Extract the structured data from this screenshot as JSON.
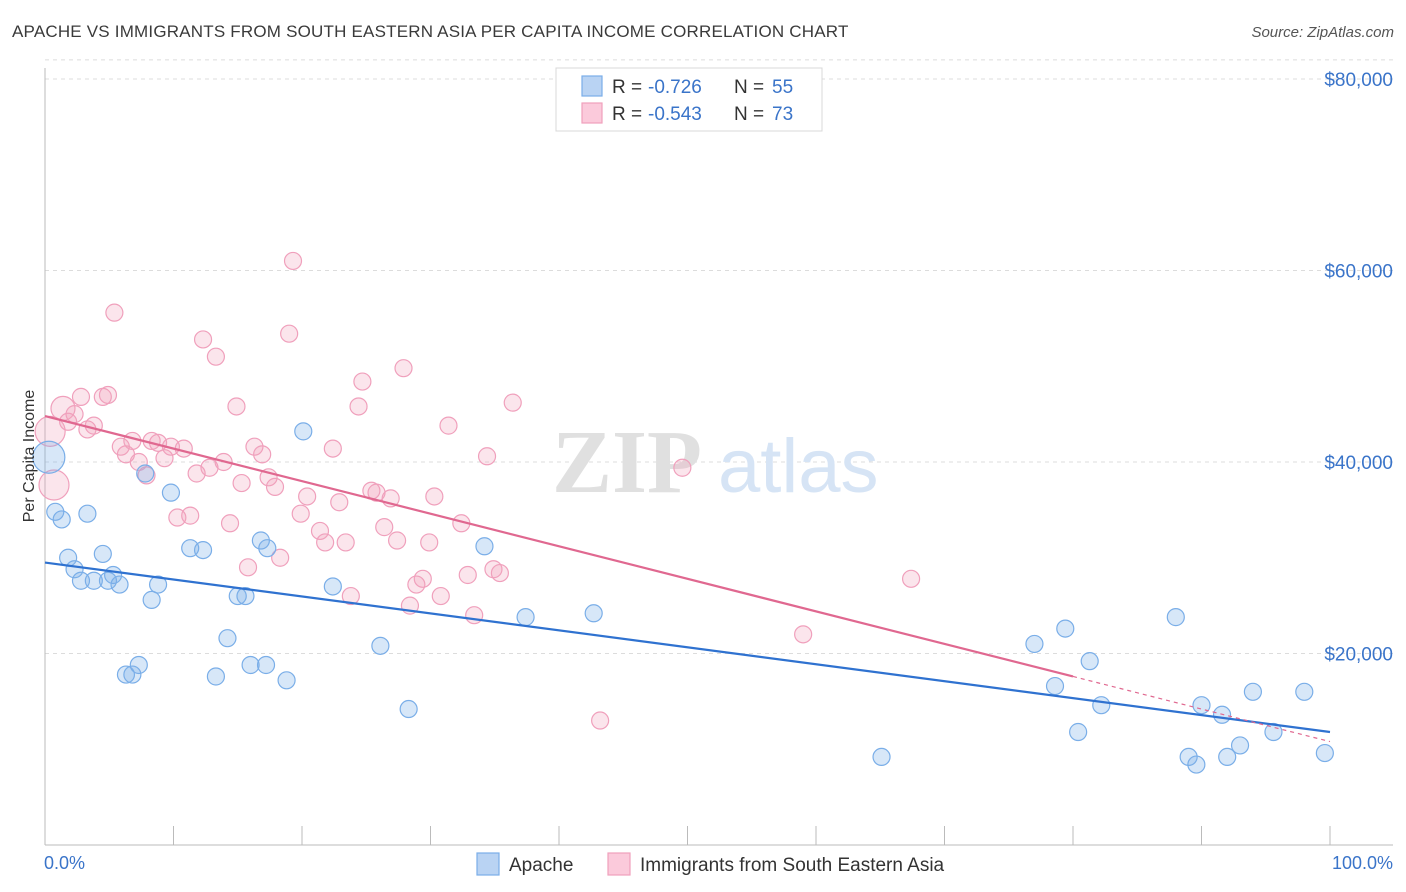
{
  "title": "APACHE VS IMMIGRANTS FROM SOUTH EASTERN ASIA PER CAPITA INCOME CORRELATION CHART",
  "source": "Source: ZipAtlas.com",
  "watermark": {
    "zip": "ZIP",
    "atlas": "atlas"
  },
  "colors": {
    "apache": "#7aaee8",
    "apache_line": "#2f72d0",
    "sea": "#f0a0bc",
    "sea_line": "#e06890",
    "accent_text": "#3a74c9"
  },
  "legend": {
    "rows": [
      {
        "r_label": "R =",
        "r_value": "-0.726",
        "n_label": "N =",
        "n_value": "55"
      },
      {
        "r_label": "R =",
        "r_value": "-0.543",
        "n_label": "N =",
        "n_value": "73"
      }
    ]
  },
  "chart_data": {
    "type": "scatter",
    "title": "APACHE VS IMMIGRANTS FROM SOUTH EASTERN ASIA PER CAPITA INCOME CORRELATION CHART",
    "ylabel": "Per Capita Income",
    "xlabel": "",
    "xlim": [
      0,
      100
    ],
    "ylim": [
      0,
      82000
    ],
    "x_tick_labels": [
      "0.0%",
      "100.0%"
    ],
    "y_ticks": [
      20000,
      40000,
      60000,
      80000
    ],
    "y_tick_labels": [
      "$20,000",
      "$40,000",
      "$60,000",
      "$80,000"
    ],
    "grid": true,
    "series": [
      {
        "name": "Apache",
        "r": -0.726,
        "n": 55,
        "trend": {
          "x": [
            0,
            100
          ],
          "y": [
            29500,
            11800
          ]
        },
        "points": [
          [
            0.3,
            40500
          ],
          [
            0.8,
            34800
          ],
          [
            1.3,
            34000
          ],
          [
            1.8,
            30000
          ],
          [
            2.3,
            28800
          ],
          [
            2.8,
            27600
          ],
          [
            3.3,
            34600
          ],
          [
            3.8,
            27600
          ],
          [
            4.5,
            30400
          ],
          [
            4.9,
            27600
          ],
          [
            5.3,
            28200
          ],
          [
            5.8,
            27200
          ],
          [
            6.3,
            17800
          ],
          [
            6.8,
            17800
          ],
          [
            7.3,
            18800
          ],
          [
            7.8,
            38800
          ],
          [
            8.3,
            25600
          ],
          [
            8.8,
            27200
          ],
          [
            9.8,
            36800
          ],
          [
            11.3,
            31000
          ],
          [
            12.3,
            30800
          ],
          [
            13.3,
            17600
          ],
          [
            14.2,
            21600
          ],
          [
            15.0,
            26000
          ],
          [
            15.6,
            26000
          ],
          [
            16.0,
            18800
          ],
          [
            16.8,
            31800
          ],
          [
            17.3,
            31000
          ],
          [
            17.2,
            18800
          ],
          [
            18.8,
            17200
          ],
          [
            20.1,
            43200
          ],
          [
            22.4,
            27000
          ],
          [
            26.1,
            20800
          ],
          [
            28.3,
            14200
          ],
          [
            34.2,
            31200
          ],
          [
            37.4,
            23800
          ],
          [
            42.7,
            24200
          ],
          [
            65.1,
            9200
          ],
          [
            77.0,
            21000
          ],
          [
            78.6,
            16600
          ],
          [
            79.4,
            22600
          ],
          [
            80.4,
            11800
          ],
          [
            81.3,
            19200
          ],
          [
            82.2,
            14600
          ],
          [
            88.0,
            23800
          ],
          [
            89.0,
            9200
          ],
          [
            89.6,
            8400
          ],
          [
            90.0,
            14600
          ],
          [
            91.6,
            13600
          ],
          [
            92.0,
            9200
          ],
          [
            93.0,
            10400
          ],
          [
            94.0,
            16000
          ],
          [
            95.6,
            11800
          ],
          [
            98.0,
            16000
          ],
          [
            99.6,
            9600
          ]
        ]
      },
      {
        "name": "Immigrants from South Eastern Asia",
        "r": -0.543,
        "n": 73,
        "trend": {
          "x": [
            0,
            80
          ],
          "y": [
            44800,
            17600
          ]
        },
        "trend_ext": {
          "x": [
            80,
            100
          ],
          "y": [
            17600,
            10800
          ]
        },
        "points": [
          [
            0.4,
            43200
          ],
          [
            0.7,
            37600
          ],
          [
            1.4,
            45600
          ],
          [
            1.8,
            44200
          ],
          [
            2.3,
            45000
          ],
          [
            2.8,
            46800
          ],
          [
            3.3,
            43400
          ],
          [
            3.8,
            43800
          ],
          [
            4.5,
            46800
          ],
          [
            4.9,
            47000
          ],
          [
            5.4,
            55600
          ],
          [
            5.9,
            41600
          ],
          [
            6.3,
            40800
          ],
          [
            6.8,
            42200
          ],
          [
            7.3,
            40000
          ],
          [
            7.9,
            38600
          ],
          [
            8.3,
            42200
          ],
          [
            8.8,
            42000
          ],
          [
            9.3,
            40400
          ],
          [
            9.8,
            41600
          ],
          [
            10.3,
            34200
          ],
          [
            10.8,
            41400
          ],
          [
            11.3,
            34400
          ],
          [
            11.8,
            38800
          ],
          [
            12.3,
            52800
          ],
          [
            12.8,
            39400
          ],
          [
            13.3,
            51000
          ],
          [
            13.9,
            40000
          ],
          [
            14.4,
            33600
          ],
          [
            14.9,
            45800
          ],
          [
            15.3,
            37800
          ],
          [
            15.8,
            29000
          ],
          [
            16.3,
            41600
          ],
          [
            16.9,
            40800
          ],
          [
            17.4,
            38400
          ],
          [
            17.9,
            37400
          ],
          [
            18.3,
            30000
          ],
          [
            19.0,
            53400
          ],
          [
            19.3,
            61000
          ],
          [
            19.9,
            34600
          ],
          [
            20.4,
            36400
          ],
          [
            21.4,
            32800
          ],
          [
            21.8,
            31600
          ],
          [
            22.4,
            41400
          ],
          [
            22.9,
            35800
          ],
          [
            23.4,
            31600
          ],
          [
            23.8,
            26000
          ],
          [
            24.4,
            45800
          ],
          [
            24.7,
            48400
          ],
          [
            25.4,
            37000
          ],
          [
            25.8,
            36800
          ],
          [
            26.4,
            33200
          ],
          [
            26.9,
            36200
          ],
          [
            27.4,
            31800
          ],
          [
            27.9,
            49800
          ],
          [
            28.4,
            25000
          ],
          [
            28.9,
            27200
          ],
          [
            29.4,
            27800
          ],
          [
            29.9,
            31600
          ],
          [
            30.3,
            36400
          ],
          [
            30.8,
            26000
          ],
          [
            31.4,
            43800
          ],
          [
            32.4,
            33600
          ],
          [
            32.9,
            28200
          ],
          [
            33.4,
            24000
          ],
          [
            34.4,
            40600
          ],
          [
            34.9,
            28800
          ],
          [
            35.4,
            28400
          ],
          [
            36.4,
            46200
          ],
          [
            43.2,
            13000
          ],
          [
            49.6,
            39400
          ],
          [
            59.0,
            22000
          ],
          [
            67.4,
            27800
          ]
        ]
      }
    ]
  },
  "bottom_legend": [
    {
      "label": "Apache"
    },
    {
      "label": "Immigrants from South Eastern Asia"
    }
  ]
}
